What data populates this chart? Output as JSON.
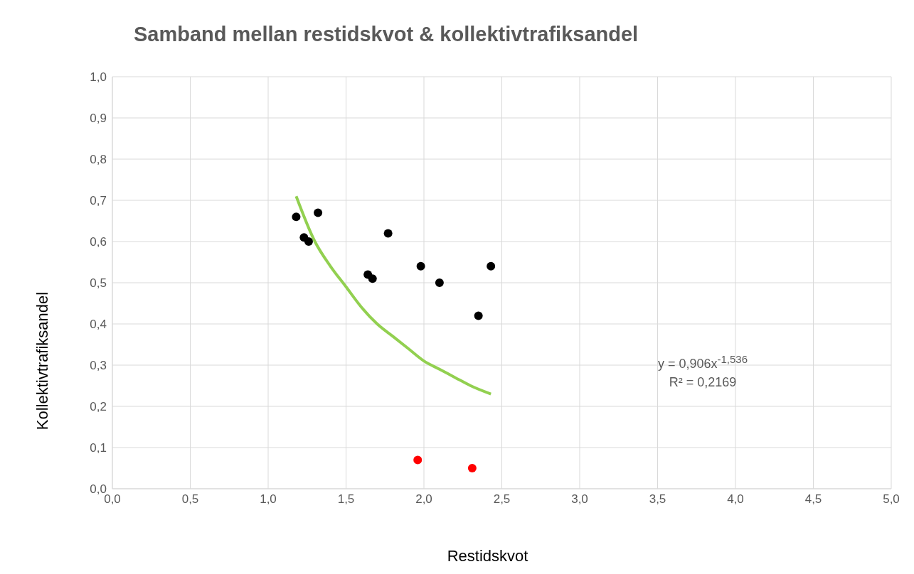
{
  "chart_data": {
    "type": "scatter",
    "title": "Samband mellan restidskvot & kollektivtrafiksandel",
    "xlabel": "Restidskvot",
    "ylabel": "Kollektivtrafiksandel",
    "xlim": [
      0,
      5
    ],
    "xticks": [
      {
        "value": 0,
        "label": "0,0"
      },
      {
        "value": 0.5,
        "label": "0,5"
      },
      {
        "value": 1,
        "label": "1,0"
      },
      {
        "value": 1.5,
        "label": "1,5"
      },
      {
        "value": 2,
        "label": "2,0"
      },
      {
        "value": 2.5,
        "label": "2,5"
      },
      {
        "value": 3,
        "label": "3,0"
      },
      {
        "value": 3.5,
        "label": "3,5"
      },
      {
        "value": 4,
        "label": "4,0"
      },
      {
        "value": 4.5,
        "label": "4,5"
      },
      {
        "value": 5,
        "label": "5,0"
      }
    ],
    "ylim": [
      0,
      1
    ],
    "yticks": [
      {
        "value": 0,
        "label": "0,0"
      },
      {
        "value": 0.1,
        "label": "0,1"
      },
      {
        "value": 0.2,
        "label": "0,2"
      },
      {
        "value": 0.3,
        "label": "0,3"
      },
      {
        "value": 0.4,
        "label": "0,4"
      },
      {
        "value": 0.5,
        "label": "0,5"
      },
      {
        "value": 0.6,
        "label": "0,6"
      },
      {
        "value": 0.7,
        "label": "0,7"
      },
      {
        "value": 0.8,
        "label": "0,8"
      },
      {
        "value": 0.9,
        "label": "0,9"
      },
      {
        "value": 1,
        "label": "1,0"
      }
    ],
    "grid": true,
    "marker": "circle",
    "series": [
      {
        "color": "#000000",
        "x": [
          1.18,
          1.23,
          1.26,
          1.32,
          1.64,
          1.67,
          1.77,
          1.98,
          2.1,
          2.35,
          2.43
        ],
        "values": [
          0.66,
          0.61,
          0.6,
          0.67,
          0.52,
          0.51,
          0.62,
          0.54,
          0.5,
          0.42,
          0.54
        ]
      },
      {
        "color": "#ff0000",
        "x": [
          1.96,
          2.31
        ],
        "values": [
          0.07,
          0.05
        ]
      },
      {
        "type": "line",
        "color": "#92d050",
        "marker": "none",
        "x": [
          1.18,
          1.3,
          1.4,
          1.5,
          1.6,
          1.7,
          1.8,
          1.9,
          2.0,
          2.1,
          2.2,
          2.3,
          2.43
        ],
        "values": [
          0.71,
          0.6,
          0.54,
          0.49,
          0.44,
          0.4,
          0.37,
          0.34,
          0.31,
          0.29,
          0.27,
          0.25,
          0.23
        ]
      }
    ],
    "annotations": [
      "y = 0,906x$^{-1,536}$",
      "R² = 0,2169"
    ]
  }
}
